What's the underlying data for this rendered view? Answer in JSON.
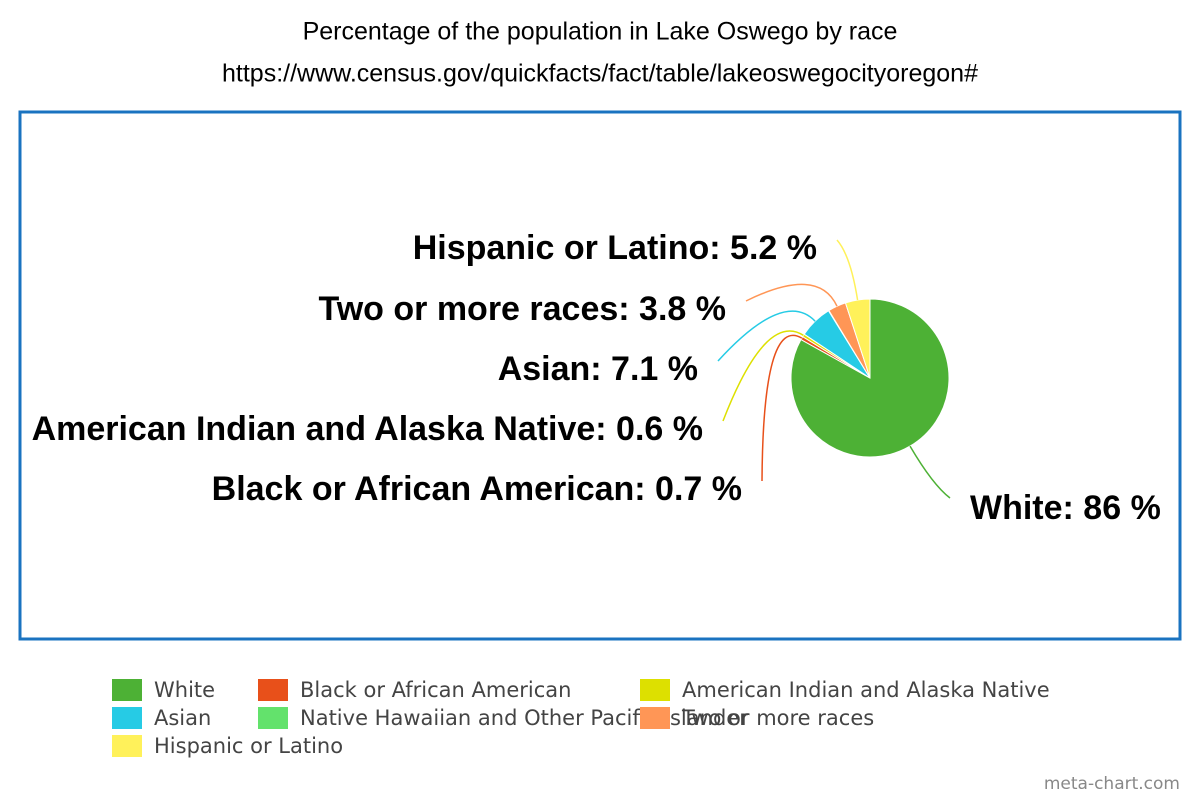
{
  "chart_data": {
    "type": "pie",
    "title": "Percentage of the population in Lake Oswego by race",
    "subtitle": "https://www.census.gov/quickfacts/fact/table/lakeoswegocityoregon#",
    "categories": [
      "White",
      "Black or African American",
      "American Indian and Alaska Native",
      "Asian",
      "Native Hawaiian and Other Pacific Islander",
      "Two or more races",
      "Hispanic or Latino"
    ],
    "values": [
      86,
      0.7,
      0.6,
      7.1,
      0.1,
      3.8,
      5.2
    ],
    "value_labels": [
      "White: 86 %",
      "Black or African American: 0.7 %",
      "American Indian and Alaska Native: 0.6 %",
      "Asian: 7.1 %",
      null,
      "Two or more races: 3.8 %",
      "Hispanic or Latino: 5.2 %"
    ],
    "colors": [
      "#4db135",
      "#e8501a",
      "#dde000",
      "#26cbe5",
      "#63e26c",
      "#ff9656",
      "#fff15a"
    ],
    "watermark": "meta-chart.com"
  }
}
